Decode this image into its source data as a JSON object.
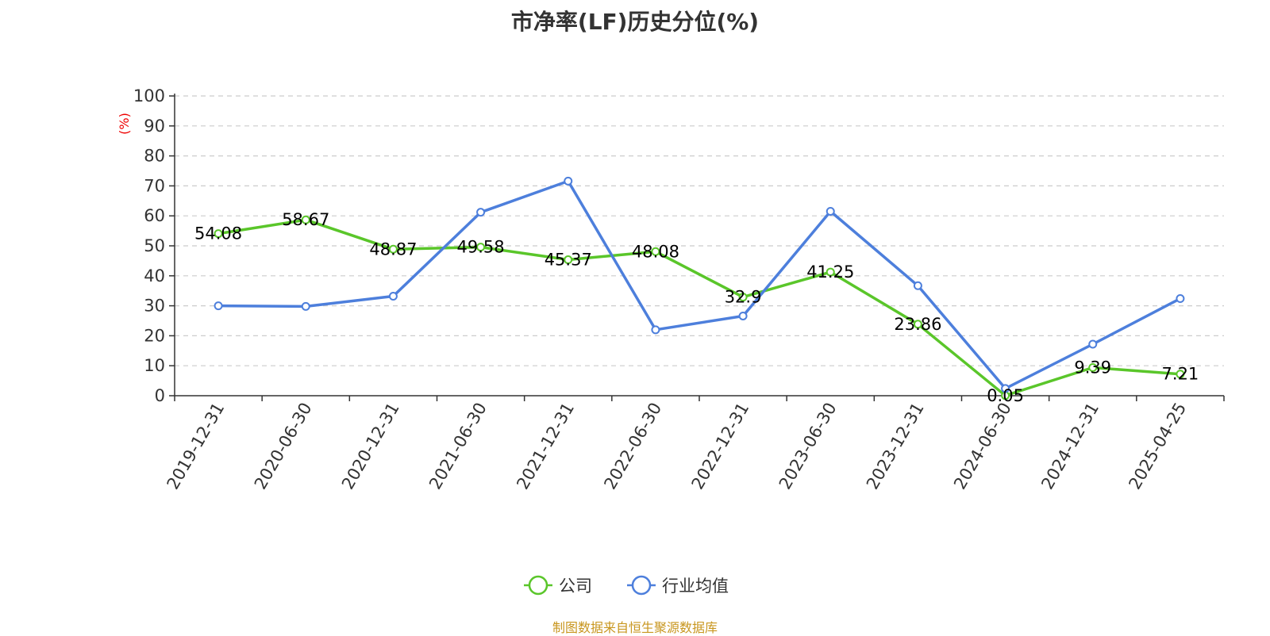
{
  "chart_data": {
    "type": "line",
    "title": "市净率(LF)历史分位(%)",
    "ylabel": "(%)",
    "xlabel": "",
    "ylim": [
      0,
      100
    ],
    "yticks": [
      0,
      10,
      20,
      30,
      40,
      50,
      60,
      70,
      80,
      90,
      100
    ],
    "grid": true,
    "legend_position": "bottom-center",
    "categories": [
      "2019-12-31",
      "2020-06-30",
      "2020-12-31",
      "2021-06-30",
      "2021-12-31",
      "2022-06-30",
      "2022-12-31",
      "2023-06-30",
      "2023-12-31",
      "2024-06-30",
      "2024-12-31",
      "2025-04-25"
    ],
    "series": [
      {
        "name": "公司",
        "color": "#5ac62a",
        "values": [
          54.08,
          58.67,
          48.87,
          49.58,
          45.37,
          48.08,
          32.9,
          41.25,
          23.86,
          0.05,
          9.39,
          7.21
        ],
        "labels": [
          "54.08",
          "58.67",
          "48.87",
          "49.58",
          "45.37",
          "48.08",
          "32.9",
          "41.25",
          "23.86",
          "0.05",
          "9.39",
          "7.21"
        ]
      },
      {
        "name": "行业均值",
        "color": "#4d7fdc",
        "values": [
          30.0,
          29.8,
          33.2,
          61.2,
          71.6,
          22.0,
          26.6,
          61.5,
          36.7,
          2.4,
          17.2,
          32.4
        ]
      }
    ]
  },
  "source": "制图数据来自恒生聚源数据库"
}
